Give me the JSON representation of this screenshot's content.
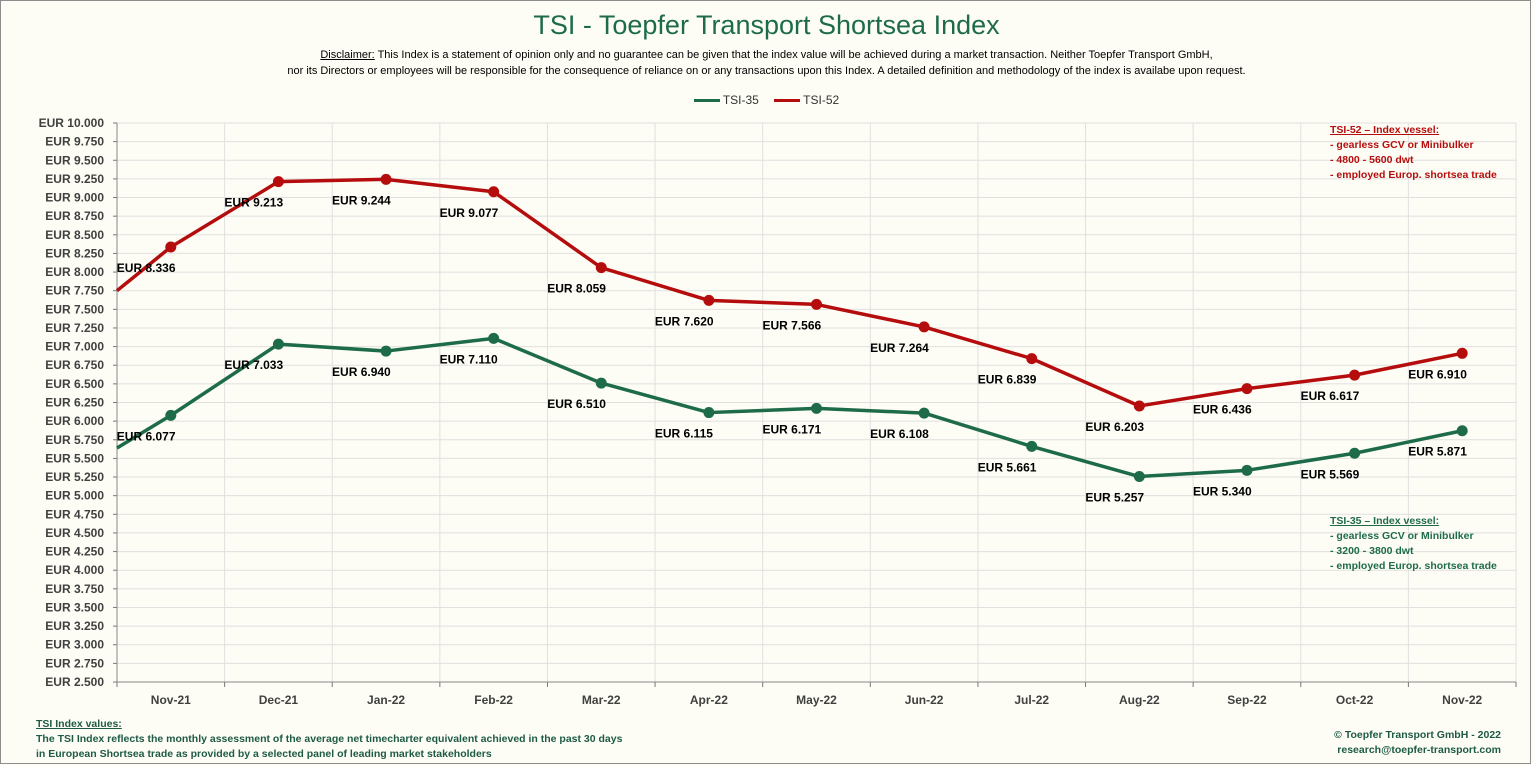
{
  "title": "TSI - Toepfer Transport Shortsea Index",
  "disclaimer": {
    "label": "Disclaimer:",
    "line1": " This Index is a statement of opinion only and no guarantee can be given that the index value will be achieved during a market transaction. Neither Toepfer Transport GmbH,",
    "line2": "nor its Directors or employees will be responsible for the consequence of reliance on or any transactions upon this Index.  A detailed definition and methodology of the index is availabe upon request."
  },
  "legend": {
    "tsi35": "TSI-35",
    "tsi52": "TSI-52"
  },
  "colors": {
    "tsi35": "#1e6b4a",
    "tsi52": "#b50d0d",
    "grid": "#e0e0e0"
  },
  "notes": {
    "tsi52": {
      "heading": "TSI-52 – Index vessel:",
      "line1": "- gearless GCV or Minibulker",
      "line2": "- 4800 - 5600 dwt",
      "line3": "- employed Europ. shortsea trade"
    },
    "tsi35": {
      "heading": "TSI-35 – Index vessel:",
      "line1": "- gearless GCV or Minibulker",
      "line2": "- 3200 - 3800 dwt",
      "line3": "- employed Europ. shortsea trade"
    }
  },
  "footer": {
    "heading": "TSI Index values:",
    "line1": "The TSI Index reflects the monthly assessment of the average net timecharter equivalent achieved in the past 30 days",
    "line2": "in European Shortsea trade as provided  by a selected panel of leading market stakeholders",
    "copyright": "© Toepfer Transport GmbH - 2022",
    "email": "research@toepfer-transport.com"
  },
  "chart_data": {
    "type": "line",
    "title": "TSI - Toepfer Transport Shortsea Index",
    "xlabel": "",
    "ylabel": "",
    "categories": [
      "Nov-21",
      "Dec-21",
      "Jan-22",
      "Feb-22",
      "Mar-22",
      "Apr-22",
      "May-22",
      "Jun-22",
      "Jul-22",
      "Aug-22",
      "Sep-22",
      "Oct-22",
      "Nov-22"
    ],
    "ylim": [
      2500,
      10000
    ],
    "ystep": 250,
    "ytick_prefix": "EUR ",
    "grid": true,
    "legend_position": "top",
    "series": [
      {
        "name": "TSI-35",
        "color": "#1e6b4a",
        "start_value": 5640,
        "values": [
          6077,
          7033,
          6940,
          7110,
          6510,
          6115,
          6171,
          6108,
          5661,
          5257,
          5340,
          5569,
          5871
        ],
        "labels": [
          "EUR 6.077",
          "EUR 7.033",
          "EUR 6.940",
          "EUR 7.110",
          "EUR 6.510",
          "EUR 6.115",
          "EUR 6.171",
          "EUR 6.108",
          "EUR 5.661",
          "EUR 5.257",
          "EUR 5.340",
          "EUR 5.569",
          "EUR 5.871"
        ]
      },
      {
        "name": "TSI-52",
        "color": "#b50d0d",
        "start_value": 7750,
        "values": [
          8336,
          9213,
          9244,
          9077,
          8059,
          7620,
          7566,
          7264,
          6839,
          6203,
          6436,
          6617,
          6910
        ],
        "labels": [
          "EUR 8.336",
          "EUR 9.213",
          "EUR 9.244",
          "EUR 9.077",
          "EUR 8.059",
          "EUR 7.620",
          "EUR 7.566",
          "EUR 7.264",
          "EUR 6.839",
          "EUR 6.203",
          "EUR 6.436",
          "EUR 6.617",
          "EUR 6.910"
        ]
      }
    ]
  }
}
